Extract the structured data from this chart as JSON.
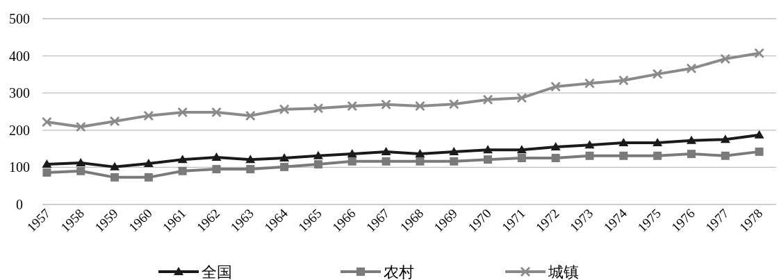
{
  "chart_data": {
    "type": "line",
    "categories": [
      "1957",
      "1958",
      "1959",
      "1960",
      "1961",
      "1962",
      "1963",
      "1964",
      "1965",
      "1966",
      "1967",
      "1968",
      "1969",
      "1970",
      "1971",
      "1972",
      "1973",
      "1974",
      "1975",
      "1976",
      "1977",
      "1978"
    ],
    "series": [
      {
        "name": "全国",
        "color": "#1a1a1a",
        "marker": "triangle",
        "values": [
          108,
          112,
          101,
          110,
          121,
          127,
          121,
          125,
          131,
          136,
          142,
          136,
          142,
          147,
          147,
          155,
          160,
          166,
          166,
          172,
          175,
          187
        ]
      },
      {
        "name": "农村",
        "color": "#7a7a7a",
        "marker": "square",
        "values": [
          86,
          90,
          73,
          73,
          90,
          95,
          95,
          101,
          108,
          116,
          116,
          116,
          116,
          121,
          125,
          125,
          131,
          131,
          131,
          136,
          131,
          142
        ]
      },
      {
        "name": "城镇",
        "color": "#8a8a8a",
        "marker": "cross",
        "values": [
          222,
          209,
          224,
          239,
          248,
          248,
          239,
          256,
          259,
          265,
          269,
          265,
          270,
          282,
          287,
          317,
          326,
          334,
          351,
          366,
          392,
          407
        ]
      }
    ],
    "ylim": [
      0,
      500
    ],
    "yticks": [
      0,
      100,
      200,
      300,
      400,
      500
    ],
    "grid": "y",
    "legend": "bottom",
    "line_style": "solid"
  }
}
